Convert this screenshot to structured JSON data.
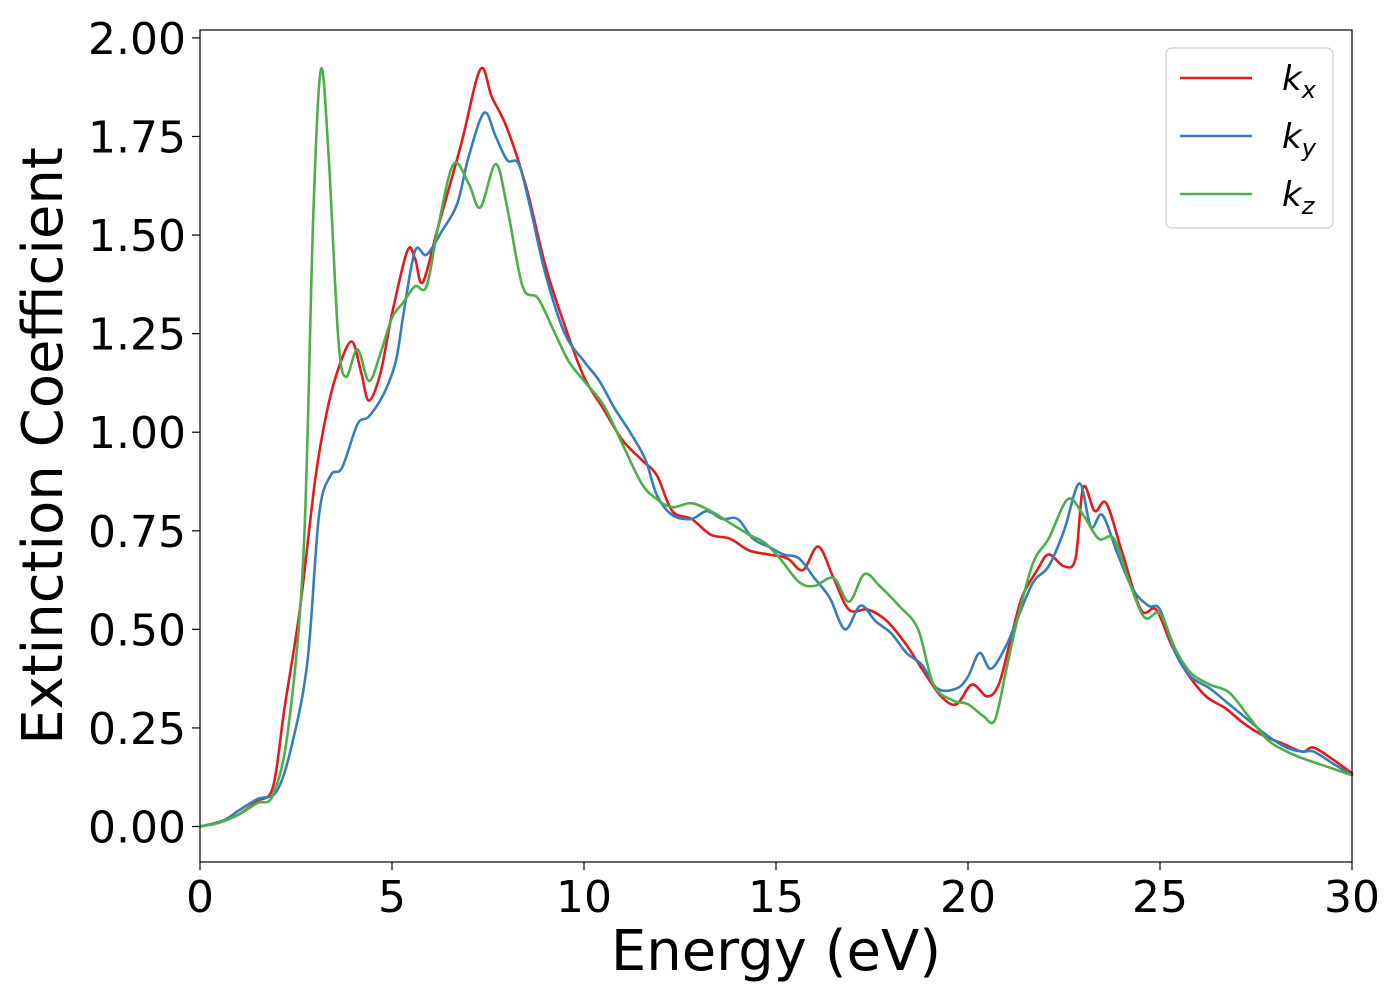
{
  "chart_data": {
    "type": "line",
    "title": "",
    "xlabel": "Energy (eV)",
    "ylabel": "Extinction Coefficient",
    "xlim": [
      0,
      30
    ],
    "ylim": [
      -0.09,
      2.02
    ],
    "xticks": [
      0,
      5,
      10,
      15,
      20,
      25,
      30
    ],
    "xtick_labels": [
      "0",
      "5",
      "10",
      "15",
      "20",
      "25",
      "30"
    ],
    "yticks": [
      0,
      0.25,
      0.5,
      0.75,
      1.0,
      1.25,
      1.5,
      1.75,
      2.0
    ],
    "ytick_labels": [
      "0.00",
      "0.25",
      "0.50",
      "0.75",
      "1.00",
      "1.25",
      "1.50",
      "1.75",
      "2.00"
    ],
    "grid": false,
    "legend_position": "top-right",
    "series": [
      {
        "name": "k",
        "subscript": "x",
        "color": "#e41a1c",
        "points": [
          [
            0,
            0
          ],
          [
            0.5,
            0.01
          ],
          [
            1.0,
            0.03
          ],
          [
            1.5,
            0.065
          ],
          [
            1.9,
            0.1
          ],
          [
            2.2,
            0.3
          ],
          [
            2.6,
            0.55
          ],
          [
            3.0,
            0.88
          ],
          [
            3.3,
            1.05
          ],
          [
            3.6,
            1.16
          ],
          [
            3.95,
            1.23
          ],
          [
            4.2,
            1.15
          ],
          [
            4.4,
            1.08
          ],
          [
            4.7,
            1.15
          ],
          [
            5.0,
            1.3
          ],
          [
            5.4,
            1.46
          ],
          [
            5.6,
            1.44
          ],
          [
            5.8,
            1.38
          ],
          [
            6.2,
            1.52
          ],
          [
            6.8,
            1.73
          ],
          [
            7.3,
            1.92
          ],
          [
            7.6,
            1.85
          ],
          [
            8.0,
            1.77
          ],
          [
            8.5,
            1.62
          ],
          [
            9.0,
            1.42
          ],
          [
            9.5,
            1.27
          ],
          [
            10.0,
            1.14
          ],
          [
            10.5,
            1.06
          ],
          [
            11.0,
            0.98
          ],
          [
            11.5,
            0.93
          ],
          [
            11.9,
            0.89
          ],
          [
            12.3,
            0.8
          ],
          [
            12.8,
            0.78
          ],
          [
            13.3,
            0.74
          ],
          [
            13.8,
            0.73
          ],
          [
            14.3,
            0.7
          ],
          [
            14.8,
            0.69
          ],
          [
            15.3,
            0.68
          ],
          [
            15.7,
            0.65
          ],
          [
            16.1,
            0.71
          ],
          [
            16.5,
            0.63
          ],
          [
            16.9,
            0.55
          ],
          [
            17.4,
            0.55
          ],
          [
            17.9,
            0.52
          ],
          [
            18.4,
            0.46
          ],
          [
            18.8,
            0.4
          ],
          [
            19.3,
            0.33
          ],
          [
            19.7,
            0.31
          ],
          [
            20.1,
            0.36
          ],
          [
            20.5,
            0.33
          ],
          [
            20.8,
            0.36
          ],
          [
            21.1,
            0.47
          ],
          [
            21.4,
            0.58
          ],
          [
            21.8,
            0.65
          ],
          [
            22.1,
            0.69
          ],
          [
            22.5,
            0.66
          ],
          [
            22.8,
            0.68
          ],
          [
            23.0,
            0.86
          ],
          [
            23.3,
            0.8
          ],
          [
            23.6,
            0.82
          ],
          [
            24.0,
            0.7
          ],
          [
            24.5,
            0.55
          ],
          [
            24.9,
            0.55
          ],
          [
            25.3,
            0.46
          ],
          [
            25.7,
            0.39
          ],
          [
            26.2,
            0.33
          ],
          [
            26.7,
            0.3
          ],
          [
            27.2,
            0.26
          ],
          [
            27.7,
            0.23
          ],
          [
            28.2,
            0.21
          ],
          [
            28.7,
            0.19
          ],
          [
            29.0,
            0.2
          ],
          [
            29.5,
            0.17
          ],
          [
            30.0,
            0.135
          ]
        ]
      },
      {
        "name": "k",
        "subscript": "y",
        "color": "#377eb8",
        "points": [
          [
            0,
            0
          ],
          [
            0.6,
            0.015
          ],
          [
            1.0,
            0.04
          ],
          [
            1.5,
            0.07
          ],
          [
            2.0,
            0.09
          ],
          [
            2.4,
            0.21
          ],
          [
            2.8,
            0.42
          ],
          [
            3.1,
            0.79
          ],
          [
            3.4,
            0.89
          ],
          [
            3.7,
            0.91
          ],
          [
            4.1,
            1.02
          ],
          [
            4.4,
            1.04
          ],
          [
            4.8,
            1.1
          ],
          [
            5.1,
            1.18
          ],
          [
            5.3,
            1.3
          ],
          [
            5.6,
            1.46
          ],
          [
            5.9,
            1.45
          ],
          [
            6.3,
            1.51
          ],
          [
            6.7,
            1.58
          ],
          [
            7.0,
            1.7
          ],
          [
            7.4,
            1.81
          ],
          [
            7.7,
            1.75
          ],
          [
            8.0,
            1.69
          ],
          [
            8.3,
            1.68
          ],
          [
            8.6,
            1.57
          ],
          [
            9.0,
            1.4
          ],
          [
            9.5,
            1.25
          ],
          [
            10.0,
            1.18
          ],
          [
            10.4,
            1.13
          ],
          [
            10.8,
            1.06
          ],
          [
            11.2,
            1.0
          ],
          [
            11.6,
            0.93
          ],
          [
            11.9,
            0.84
          ],
          [
            12.3,
            0.79
          ],
          [
            12.8,
            0.78
          ],
          [
            13.2,
            0.8
          ],
          [
            13.6,
            0.78
          ],
          [
            14.0,
            0.78
          ],
          [
            14.4,
            0.73
          ],
          [
            14.8,
            0.71
          ],
          [
            15.2,
            0.69
          ],
          [
            15.6,
            0.68
          ],
          [
            16.0,
            0.63
          ],
          [
            16.4,
            0.58
          ],
          [
            16.8,
            0.5
          ],
          [
            17.2,
            0.56
          ],
          [
            17.6,
            0.52
          ],
          [
            18.0,
            0.49
          ],
          [
            18.4,
            0.44
          ],
          [
            18.8,
            0.41
          ],
          [
            19.2,
            0.35
          ],
          [
            19.7,
            0.35
          ],
          [
            20.0,
            0.38
          ],
          [
            20.3,
            0.44
          ],
          [
            20.6,
            0.4
          ],
          [
            21.0,
            0.46
          ],
          [
            21.3,
            0.53
          ],
          [
            21.7,
            0.62
          ],
          [
            22.1,
            0.66
          ],
          [
            22.5,
            0.75
          ],
          [
            22.9,
            0.87
          ],
          [
            23.2,
            0.76
          ],
          [
            23.5,
            0.79
          ],
          [
            23.9,
            0.69
          ],
          [
            24.3,
            0.6
          ],
          [
            24.7,
            0.56
          ],
          [
            25.0,
            0.55
          ],
          [
            25.4,
            0.44
          ],
          [
            25.8,
            0.38
          ],
          [
            26.3,
            0.35
          ],
          [
            26.8,
            0.31
          ],
          [
            27.3,
            0.27
          ],
          [
            27.8,
            0.23
          ],
          [
            28.3,
            0.2
          ],
          [
            28.7,
            0.19
          ],
          [
            29.0,
            0.19
          ],
          [
            29.5,
            0.16
          ],
          [
            30.0,
            0.13
          ]
        ]
      },
      {
        "name": "k",
        "subscript": "z",
        "color": "#4daf4a",
        "points": [
          [
            0,
            0
          ],
          [
            0.5,
            0.01
          ],
          [
            1.0,
            0.03
          ],
          [
            1.5,
            0.06
          ],
          [
            1.9,
            0.08
          ],
          [
            2.3,
            0.25
          ],
          [
            2.7,
            0.7
          ],
          [
            2.95,
            1.55
          ],
          [
            3.15,
            1.92
          ],
          [
            3.35,
            1.7
          ],
          [
            3.6,
            1.24
          ],
          [
            3.8,
            1.14
          ],
          [
            4.1,
            1.21
          ],
          [
            4.4,
            1.13
          ],
          [
            4.7,
            1.2
          ],
          [
            5.0,
            1.29
          ],
          [
            5.3,
            1.33
          ],
          [
            5.6,
            1.37
          ],
          [
            5.9,
            1.37
          ],
          [
            6.2,
            1.52
          ],
          [
            6.6,
            1.68
          ],
          [
            7.0,
            1.63
          ],
          [
            7.3,
            1.57
          ],
          [
            7.7,
            1.68
          ],
          [
            8.0,
            1.57
          ],
          [
            8.4,
            1.37
          ],
          [
            8.8,
            1.34
          ],
          [
            9.2,
            1.26
          ],
          [
            9.6,
            1.18
          ],
          [
            10.0,
            1.13
          ],
          [
            10.5,
            1.07
          ],
          [
            11.0,
            0.97
          ],
          [
            11.5,
            0.87
          ],
          [
            11.9,
            0.83
          ],
          [
            12.3,
            0.81
          ],
          [
            12.8,
            0.82
          ],
          [
            13.3,
            0.8
          ],
          [
            13.8,
            0.77
          ],
          [
            14.3,
            0.74
          ],
          [
            14.7,
            0.72
          ],
          [
            15.1,
            0.68
          ],
          [
            15.6,
            0.62
          ],
          [
            16.0,
            0.61
          ],
          [
            16.5,
            0.63
          ],
          [
            16.9,
            0.57
          ],
          [
            17.3,
            0.64
          ],
          [
            17.7,
            0.61
          ],
          [
            18.2,
            0.56
          ],
          [
            18.7,
            0.5
          ],
          [
            19.1,
            0.36
          ],
          [
            19.6,
            0.32
          ],
          [
            20.0,
            0.31
          ],
          [
            20.4,
            0.28
          ],
          [
            20.7,
            0.27
          ],
          [
            21.0,
            0.4
          ],
          [
            21.3,
            0.53
          ],
          [
            21.7,
            0.67
          ],
          [
            22.1,
            0.73
          ],
          [
            22.6,
            0.83
          ],
          [
            23.0,
            0.79
          ],
          [
            23.4,
            0.73
          ],
          [
            23.8,
            0.73
          ],
          [
            24.2,
            0.62
          ],
          [
            24.6,
            0.53
          ],
          [
            25.0,
            0.54
          ],
          [
            25.4,
            0.45
          ],
          [
            25.8,
            0.39
          ],
          [
            26.3,
            0.36
          ],
          [
            26.8,
            0.34
          ],
          [
            27.3,
            0.28
          ],
          [
            27.8,
            0.22
          ],
          [
            28.3,
            0.19
          ],
          [
            28.8,
            0.17
          ],
          [
            29.4,
            0.15
          ],
          [
            30.0,
            0.13
          ]
        ]
      }
    ]
  }
}
